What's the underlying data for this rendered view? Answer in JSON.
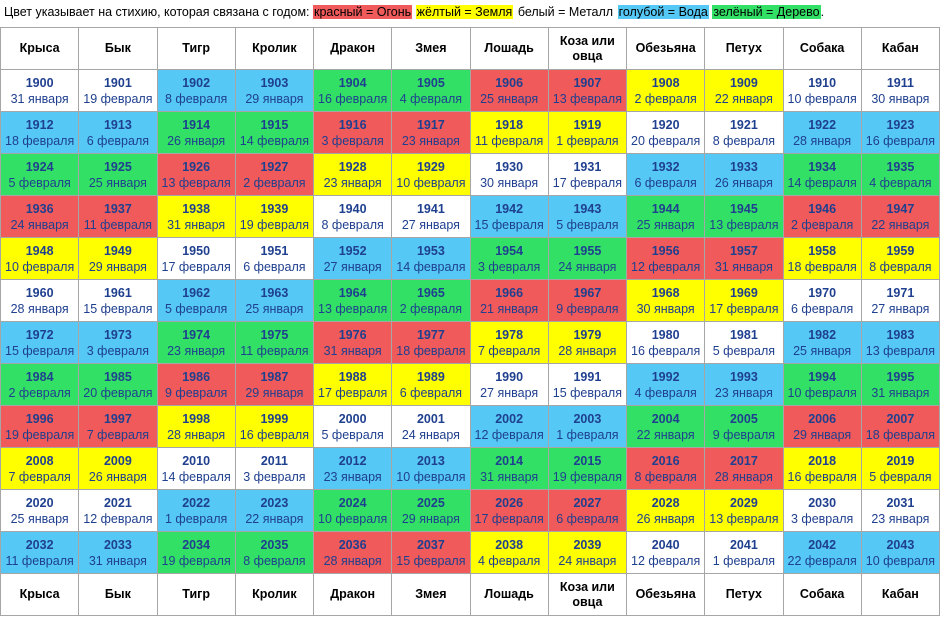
{
  "legend": {
    "intro": "Цвет указывает на стихию, которая связана с годом:",
    "items": [
      {
        "label": "красный = Огонь",
        "color": "#f05a5a"
      },
      {
        "label": "жёлтый = Земля",
        "color": "#ffff00"
      },
      {
        "label": "белый = Металл",
        "color": "#ffffff"
      },
      {
        "label": "голубой = Вода",
        "color": "#55c8f5"
      },
      {
        "label": "зелёный = Дерево",
        "color": "#33e066"
      }
    ],
    "suffix": "."
  },
  "element_colors": {
    "fire": "#f05a5a",
    "earth": "#ffff00",
    "metal": "#ffffff",
    "water": "#55c8f5",
    "wood": "#33e066"
  },
  "animals": [
    "Крыса",
    "Бык",
    "Тигр",
    "Кролик",
    "Дракон",
    "Змея",
    "Лошадь",
    "Коза или овца",
    "Обезьяна",
    "Петух",
    "Собака",
    "Кабан"
  ],
  "rows": [
    {
      "element_pattern": [
        "metal",
        "metal",
        "water",
        "water",
        "wood",
        "wood",
        "fire",
        "fire",
        "earth",
        "earth",
        "metal",
        "metal"
      ],
      "cells": [
        [
          "1900",
          "31 января"
        ],
        [
          "1901",
          "19 февраля"
        ],
        [
          "1902",
          "8 февраля"
        ],
        [
          "1903",
          "29 января"
        ],
        [
          "1904",
          "16 февраля"
        ],
        [
          "1905",
          "4 февраля"
        ],
        [
          "1906",
          "25 января"
        ],
        [
          "1907",
          "13 февраля"
        ],
        [
          "1908",
          "2 февраля"
        ],
        [
          "1909",
          "22 января"
        ],
        [
          "1910",
          "10 февраля"
        ],
        [
          "1911",
          "30 января"
        ]
      ]
    },
    {
      "element_pattern": [
        "water",
        "water",
        "wood",
        "wood",
        "fire",
        "fire",
        "earth",
        "earth",
        "metal",
        "metal",
        "water",
        "water"
      ],
      "cells": [
        [
          "1912",
          "18 февраля"
        ],
        [
          "1913",
          "6 февраля"
        ],
        [
          "1914",
          "26 января"
        ],
        [
          "1915",
          "14 февраля"
        ],
        [
          "1916",
          "3 февраля"
        ],
        [
          "1917",
          "23 января"
        ],
        [
          "1918",
          "11 февраля"
        ],
        [
          "1919",
          "1 февраля"
        ],
        [
          "1920",
          "20 февраля"
        ],
        [
          "1921",
          "8 февраля"
        ],
        [
          "1922",
          "28 января"
        ],
        [
          "1923",
          "16 февраля"
        ]
      ]
    },
    {
      "element_pattern": [
        "wood",
        "wood",
        "fire",
        "fire",
        "earth",
        "earth",
        "metal",
        "metal",
        "water",
        "water",
        "wood",
        "wood"
      ],
      "cells": [
        [
          "1924",
          "5 февраля"
        ],
        [
          "1925",
          "25 января"
        ],
        [
          "1926",
          "13 февраля"
        ],
        [
          "1927",
          "2 февраля"
        ],
        [
          "1928",
          "23 января"
        ],
        [
          "1929",
          "10 февраля"
        ],
        [
          "1930",
          "30 января"
        ],
        [
          "1931",
          "17 февраля"
        ],
        [
          "1932",
          "6 февраля"
        ],
        [
          "1933",
          "26 января"
        ],
        [
          "1934",
          "14 февраля"
        ],
        [
          "1935",
          "4 февраля"
        ]
      ]
    },
    {
      "element_pattern": [
        "fire",
        "fire",
        "earth",
        "earth",
        "metal",
        "metal",
        "water",
        "water",
        "wood",
        "wood",
        "fire",
        "fire"
      ],
      "cells": [
        [
          "1936",
          "24 января"
        ],
        [
          "1937",
          "11 февраля"
        ],
        [
          "1938",
          "31 января"
        ],
        [
          "1939",
          "19 февраля"
        ],
        [
          "1940",
          "8 февраля"
        ],
        [
          "1941",
          "27 января"
        ],
        [
          "1942",
          "15 февраля"
        ],
        [
          "1943",
          "5 февраля"
        ],
        [
          "1944",
          "25 января"
        ],
        [
          "1945",
          "13 февраля"
        ],
        [
          "1946",
          "2 февраля"
        ],
        [
          "1947",
          "22 января"
        ]
      ]
    },
    {
      "element_pattern": [
        "earth",
        "earth",
        "metal",
        "metal",
        "water",
        "water",
        "wood",
        "wood",
        "fire",
        "fire",
        "earth",
        "earth"
      ],
      "cells": [
        [
          "1948",
          "10 февраля"
        ],
        [
          "1949",
          "29 января"
        ],
        [
          "1950",
          "17 февраля"
        ],
        [
          "1951",
          "6 февраля"
        ],
        [
          "1952",
          "27 января"
        ],
        [
          "1953",
          "14 февраля"
        ],
        [
          "1954",
          "3 февраля"
        ],
        [
          "1955",
          "24 января"
        ],
        [
          "1956",
          "12 февраля"
        ],
        [
          "1957",
          "31 января"
        ],
        [
          "1958",
          "18 февраля"
        ],
        [
          "1959",
          "8 февраля"
        ]
      ]
    },
    {
      "element_pattern": [
        "metal",
        "metal",
        "water",
        "water",
        "wood",
        "wood",
        "fire",
        "fire",
        "earth",
        "earth",
        "metal",
        "metal"
      ],
      "cells": [
        [
          "1960",
          "28 января"
        ],
        [
          "1961",
          "15 февраля"
        ],
        [
          "1962",
          "5 февраля"
        ],
        [
          "1963",
          "25 января"
        ],
        [
          "1964",
          "13 февраля"
        ],
        [
          "1965",
          "2 февраля"
        ],
        [
          "1966",
          "21 января"
        ],
        [
          "1967",
          "9 февраля"
        ],
        [
          "1968",
          "30 января"
        ],
        [
          "1969",
          "17 февраля"
        ],
        [
          "1970",
          "6 февраля"
        ],
        [
          "1971",
          "27 января"
        ]
      ]
    },
    {
      "element_pattern": [
        "water",
        "water",
        "wood",
        "wood",
        "fire",
        "fire",
        "earth",
        "earth",
        "metal",
        "metal",
        "water",
        "water"
      ],
      "cells": [
        [
          "1972",
          "15 февраля"
        ],
        [
          "1973",
          "3 февраля"
        ],
        [
          "1974",
          "23 января"
        ],
        [
          "1975",
          "11 февраля"
        ],
        [
          "1976",
          "31 января"
        ],
        [
          "1977",
          "18 февраля"
        ],
        [
          "1978",
          "7 февраля"
        ],
        [
          "1979",
          "28 января"
        ],
        [
          "1980",
          "16 февраля"
        ],
        [
          "1981",
          "5 февраля"
        ],
        [
          "1982",
          "25 января"
        ],
        [
          "1983",
          "13 февраля"
        ]
      ]
    },
    {
      "element_pattern": [
        "wood",
        "wood",
        "fire",
        "fire",
        "earth",
        "earth",
        "metal",
        "metal",
        "water",
        "water",
        "wood",
        "wood"
      ],
      "cells": [
        [
          "1984",
          "2 февраля"
        ],
        [
          "1985",
          "20 февраля"
        ],
        [
          "1986",
          "9 февраля"
        ],
        [
          "1987",
          "29 января"
        ],
        [
          "1988",
          "17 февраля"
        ],
        [
          "1989",
          "6 февраля"
        ],
        [
          "1990",
          "27 января"
        ],
        [
          "1991",
          "15 февраля"
        ],
        [
          "1992",
          "4 февраля"
        ],
        [
          "1993",
          "23 января"
        ],
        [
          "1994",
          "10 февраля"
        ],
        [
          "1995",
          "31 января"
        ]
      ]
    },
    {
      "element_pattern": [
        "fire",
        "fire",
        "earth",
        "earth",
        "metal",
        "metal",
        "water",
        "water",
        "wood",
        "wood",
        "fire",
        "fire"
      ],
      "cells": [
        [
          "1996",
          "19 февраля"
        ],
        [
          "1997",
          "7 февраля"
        ],
        [
          "1998",
          "28 января"
        ],
        [
          "1999",
          "16 февраля"
        ],
        [
          "2000",
          "5 февраля"
        ],
        [
          "2001",
          "24 января"
        ],
        [
          "2002",
          "12 февраля"
        ],
        [
          "2003",
          "1 февраля"
        ],
        [
          "2004",
          "22 января"
        ],
        [
          "2005",
          "9 февраля"
        ],
        [
          "2006",
          "29 января"
        ],
        [
          "2007",
          "18 февраля"
        ]
      ]
    },
    {
      "element_pattern": [
        "earth",
        "earth",
        "metal",
        "metal",
        "water",
        "water",
        "wood",
        "wood",
        "fire",
        "fire",
        "earth",
        "earth"
      ],
      "cells": [
        [
          "2008",
          "7 февраля"
        ],
        [
          "2009",
          "26 января"
        ],
        [
          "2010",
          "14 февраля"
        ],
        [
          "2011",
          "3 февраля"
        ],
        [
          "2012",
          "23 января"
        ],
        [
          "2013",
          "10 февраля"
        ],
        [
          "2014",
          "31 января"
        ],
        [
          "2015",
          "19 февраля"
        ],
        [
          "2016",
          "8 февраля"
        ],
        [
          "2017",
          "28 января"
        ],
        [
          "2018",
          "16 февраля"
        ],
        [
          "2019",
          "5 февраля"
        ]
      ]
    },
    {
      "element_pattern": [
        "metal",
        "metal",
        "water",
        "water",
        "wood",
        "wood",
        "fire",
        "fire",
        "earth",
        "earth",
        "metal",
        "metal"
      ],
      "cells": [
        [
          "2020",
          "25 января"
        ],
        [
          "2021",
          "12 февраля"
        ],
        [
          "2022",
          "1 февраля"
        ],
        [
          "2023",
          "22 января"
        ],
        [
          "2024",
          "10 февраля"
        ],
        [
          "2025",
          "29 января"
        ],
        [
          "2026",
          "17 февраля"
        ],
        [
          "2027",
          "6 февраля"
        ],
        [
          "2028",
          "26 января"
        ],
        [
          "2029",
          "13 февраля"
        ],
        [
          "2030",
          "3 февраля"
        ],
        [
          "2031",
          "23 января"
        ]
      ]
    },
    {
      "element_pattern": [
        "water",
        "water",
        "wood",
        "wood",
        "fire",
        "fire",
        "earth",
        "earth",
        "metal",
        "metal",
        "water",
        "water"
      ],
      "cells": [
        [
          "2032",
          "11 февраля"
        ],
        [
          "2033",
          "31 января"
        ],
        [
          "2034",
          "19 февраля"
        ],
        [
          "2035",
          "8 февраля"
        ],
        [
          "2036",
          "28 января"
        ],
        [
          "2037",
          "15 февраля"
        ],
        [
          "2038",
          "4 февраля"
        ],
        [
          "2039",
          "24 января"
        ],
        [
          "2040",
          "12 февраля"
        ],
        [
          "2041",
          "1 февраля"
        ],
        [
          "2042",
          "22 февраля"
        ],
        [
          "2043",
          "10 февраля"
        ]
      ]
    }
  ]
}
